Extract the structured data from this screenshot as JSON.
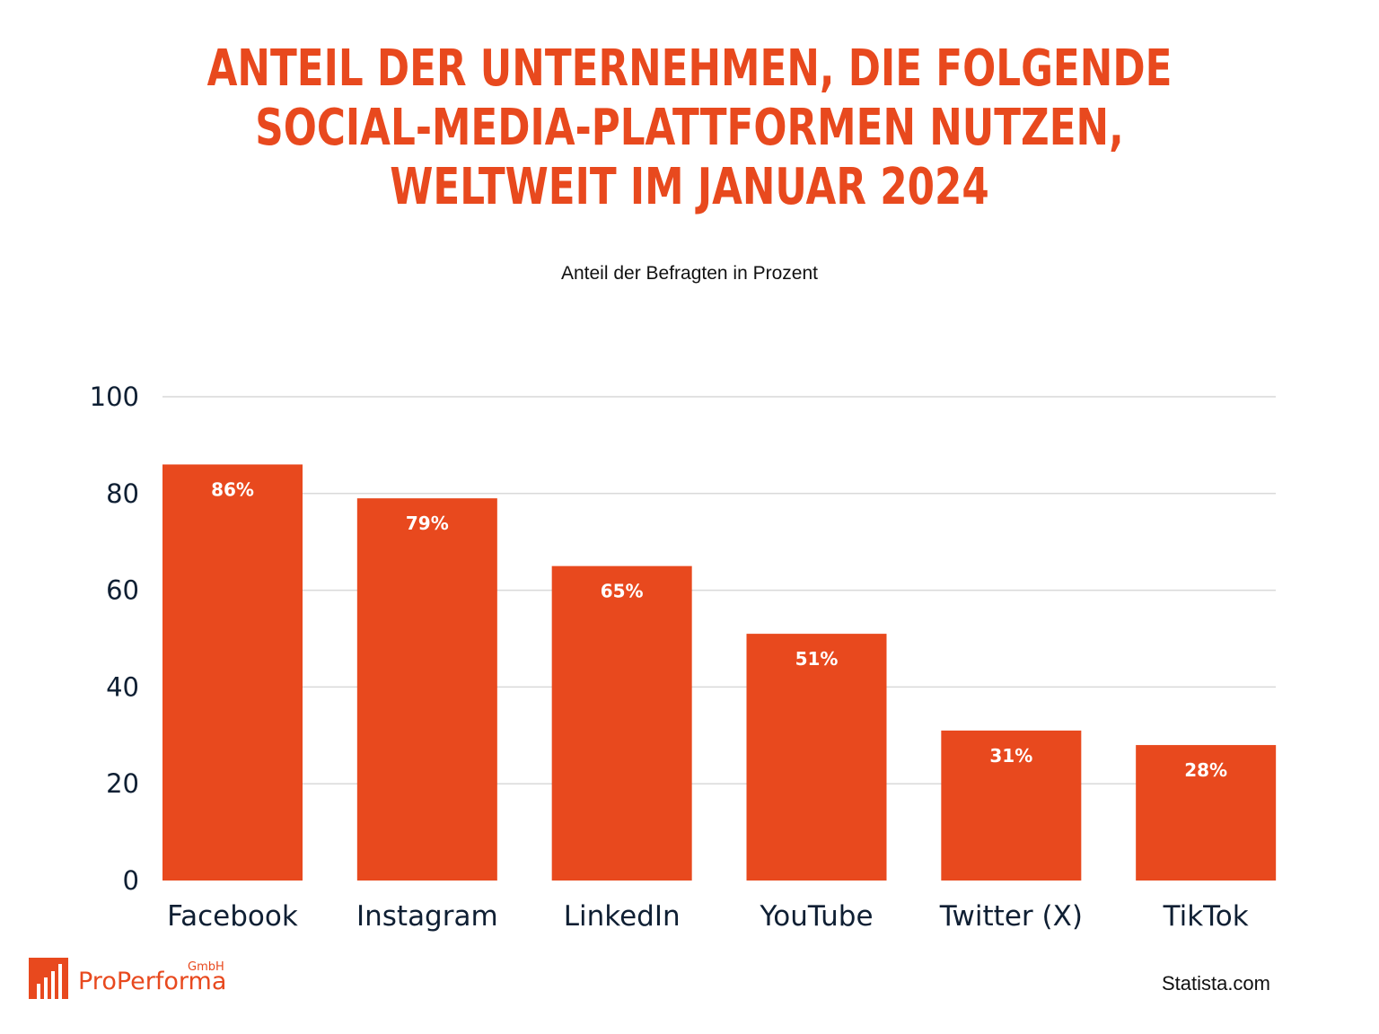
{
  "title_lines": [
    "ANTEIL DER UNTERNEHMEN, DIE FOLGENDE",
    "SOCIAL-MEDIA-PLATTFORMEN NUTZEN,",
    "WELTWEIT IM JANUAR 2024"
  ],
  "subtitle": "Anteil der Befragten in Prozent",
  "colors": {
    "bar": "#e8491e",
    "title": "#e8491e",
    "grid": "#d9d9d9",
    "axis_text": "#0f1f33"
  },
  "chart_data": {
    "type": "bar",
    "title": "ANTEIL DER UNTERNEHMEN, DIE FOLGENDE SOCIAL-MEDIA-PLATTFORMEN NUTZEN, WELTWEIT IM JANUAR 2024",
    "subtitle": "Anteil der Befragten in Prozent",
    "categories": [
      "Facebook",
      "Instagram",
      "LinkedIn",
      "YouTube",
      "Twitter (X)",
      "TikTok"
    ],
    "values": [
      86,
      79,
      65,
      51,
      31,
      28
    ],
    "data_labels": [
      "86%",
      "79%",
      "65%",
      "51%",
      "31%",
      "28%"
    ],
    "yticks": [
      0,
      20,
      40,
      60,
      80,
      100
    ],
    "ylim": [
      0,
      100
    ],
    "xlabel": "",
    "ylabel": "",
    "grid": true
  },
  "brand": {
    "name": "ProPerforma",
    "suffix": "GmbH",
    "icon": "bar-chart-logo-icon"
  },
  "source": "Statista.com"
}
